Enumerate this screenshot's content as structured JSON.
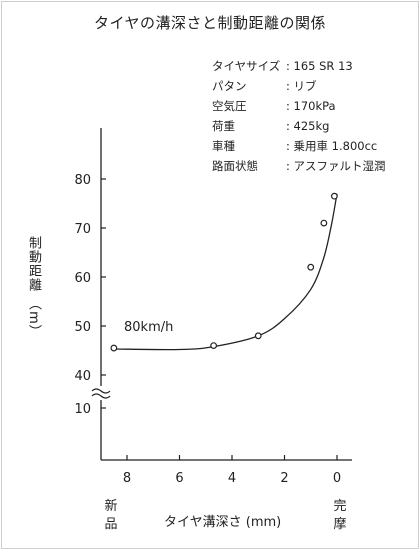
{
  "chart_data": {
    "type": "line",
    "title": "タイヤの溝深さと制動距離の関係",
    "specs": [
      {
        "key": "タイヤサイズ",
        "value": ": 165 SR 13"
      },
      {
        "key": "パタン",
        "value": ": リブ"
      },
      {
        "key": "空気圧",
        "value": ": 170kPa"
      },
      {
        "key": "荷重",
        "value": ": 425kg"
      },
      {
        "key": "車種",
        "value": ": 乗用車 1.800cc"
      },
      {
        "key": "路面状態",
        "value": ": アスファルト湿潤"
      }
    ],
    "ylabel": "制動距離 （m）",
    "xlabel": "タイヤ溝深さ (mm)",
    "x_left_label": "新品",
    "x_right_label": "完摩",
    "annotation": "80km/h",
    "x_reversed": true,
    "xlim": [
      9,
      -0.5
    ],
    "y_axis_break": true,
    "x_ticks": [
      "8",
      "6",
      "4",
      "2",
      "0"
    ],
    "y_ticks": [
      "80",
      "70",
      "60",
      "50",
      "40",
      "10"
    ],
    "points": [
      {
        "x": 8.5,
        "y": 45.5
      },
      {
        "x": 4.7,
        "y": 46
      },
      {
        "x": 3.0,
        "y": 48
      },
      {
        "x": 1.0,
        "y": 62
      },
      {
        "x": 0.5,
        "y": 71
      },
      {
        "x": 0.1,
        "y": 76.5
      }
    ],
    "curve": [
      {
        "x": 8.5,
        "y": 45.3
      },
      {
        "x": 6.0,
        "y": 45.2
      },
      {
        "x": 4.7,
        "y": 45.8
      },
      {
        "x": 3.0,
        "y": 48.0
      },
      {
        "x": 2.0,
        "y": 51.5
      },
      {
        "x": 1.0,
        "y": 57.5
      },
      {
        "x": 0.5,
        "y": 64.0
      },
      {
        "x": 0.2,
        "y": 71.0
      },
      {
        "x": 0.0,
        "y": 77.0
      }
    ],
    "grid": false
  }
}
